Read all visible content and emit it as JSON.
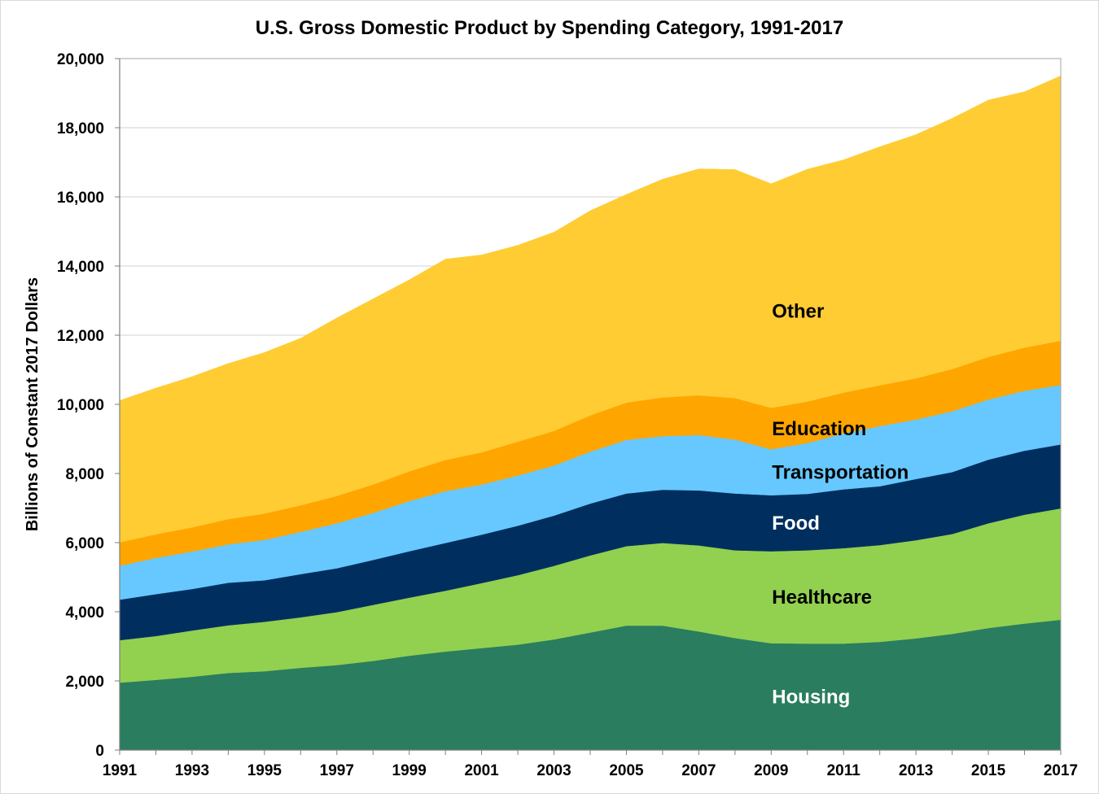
{
  "chart_data": {
    "type": "area",
    "stacked": true,
    "title": "U.S. Gross Domestic Product by Spending Category, 1991-2017",
    "xlabel": "",
    "ylabel": "Billions of Constant 2017 Dollars",
    "ylim": [
      0,
      20000
    ],
    "yticks": [
      0,
      2000,
      4000,
      6000,
      8000,
      10000,
      12000,
      14000,
      16000,
      18000,
      20000
    ],
    "ytick_labels": [
      "0",
      "2,000",
      "4,000",
      "6,000",
      "8,000",
      "10,000",
      "12,000",
      "14,000",
      "16,000",
      "18,000",
      "20,000"
    ],
    "x": [
      1991,
      1992,
      1993,
      1994,
      1995,
      1996,
      1997,
      1998,
      1999,
      2000,
      2001,
      2002,
      2003,
      2004,
      2005,
      2006,
      2007,
      2008,
      2009,
      2010,
      2011,
      2012,
      2013,
      2014,
      2015,
      2016,
      2017
    ],
    "xtick_labels": [
      "1991",
      "1993",
      "1995",
      "1997",
      "1999",
      "2001",
      "2003",
      "2005",
      "2007",
      "2009",
      "2011",
      "2013",
      "2015",
      "2017"
    ],
    "series": [
      {
        "name": "Housing",
        "color": "#2a7d5f",
        "label_color": "#ffffff",
        "values": [
          1950,
          2030,
          2120,
          2230,
          2280,
          2380,
          2460,
          2580,
          2730,
          2850,
          2950,
          3050,
          3200,
          3400,
          3600,
          3600,
          3430,
          3240,
          3090,
          3080,
          3080,
          3130,
          3230,
          3360,
          3530,
          3660,
          3770
        ]
      },
      {
        "name": "Healthcare",
        "color": "#92d050",
        "label_color": "#000000",
        "values": [
          1230,
          1270,
          1340,
          1380,
          1430,
          1460,
          1530,
          1620,
          1680,
          1760,
          1880,
          2010,
          2130,
          2230,
          2300,
          2390,
          2490,
          2540,
          2660,
          2700,
          2760,
          2800,
          2840,
          2890,
          3030,
          3150,
          3220
        ]
      },
      {
        "name": "Food",
        "color": "#002f5f",
        "label_color": "#ffffff",
        "values": [
          1170,
          1210,
          1200,
          1230,
          1200,
          1250,
          1270,
          1300,
          1340,
          1380,
          1400,
          1430,
          1450,
          1500,
          1520,
          1540,
          1590,
          1640,
          1620,
          1630,
          1700,
          1700,
          1770,
          1790,
          1840,
          1850,
          1850
        ]
      },
      {
        "name": "Transportation",
        "color": "#66c8ff",
        "label_color": "#000000",
        "values": [
          980,
          1050,
          1080,
          1110,
          1170,
          1220,
          1300,
          1360,
          1450,
          1500,
          1450,
          1450,
          1450,
          1500,
          1550,
          1550,
          1600,
          1560,
          1330,
          1470,
          1620,
          1740,
          1720,
          1760,
          1740,
          1730,
          1720
        ]
      },
      {
        "name": "Education",
        "color": "#ffa500",
        "label_color": "#000000",
        "values": [
          680,
          680,
          700,
          730,
          760,
          770,
          790,
          820,
          860,
          900,
          930,
          980,
          1000,
          1050,
          1080,
          1120,
          1150,
          1200,
          1200,
          1200,
          1180,
          1180,
          1190,
          1220,
          1230,
          1250,
          1280
        ]
      },
      {
        "name": "Other",
        "color": "#ffcc33",
        "label_color": "#000000",
        "values": [
          4100,
          4230,
          4360,
          4500,
          4660,
          4830,
          5150,
          5370,
          5540,
          5810,
          5710,
          5680,
          5750,
          5920,
          6020,
          6310,
          6550,
          6610,
          6480,
          6720,
          6730,
          6900,
          7050,
          7250,
          7430,
          7400,
          7660
        ]
      }
    ],
    "series_labels_in_plot": true,
    "grid": "horizontal",
    "legend": "none (labels inside areas)"
  }
}
